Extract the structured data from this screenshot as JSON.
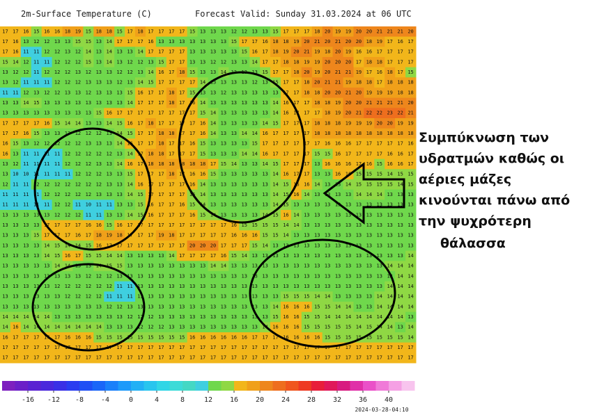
{
  "header": {
    "title": "2m-Surface Temperature (C)",
    "valid": "Forecast Valid:  Sunday 31.03.2024 at 06 UTC"
  },
  "grid": [
    [
      17,
      17,
      16,
      15,
      16,
      16,
      18,
      19,
      15,
      18,
      18,
      15,
      17,
      18,
      17,
      17,
      17,
      17,
      15,
      13,
      13,
      13,
      12,
      12,
      13,
      13,
      15,
      17,
      17,
      17,
      18,
      20,
      19,
      19,
      20,
      20,
      21,
      21,
      21,
      20
    ],
    [
      17,
      16,
      13,
      12,
      12,
      13,
      13,
      15,
      15,
      13,
      14,
      17,
      17,
      17,
      16,
      13,
      13,
      13,
      13,
      13,
      13,
      13,
      15,
      17,
      17,
      16,
      18,
      18,
      19,
      20,
      21,
      20,
      21,
      20,
      20,
      18,
      19,
      17,
      16,
      17
    ],
    [
      17,
      16,
      11,
      11,
      12,
      12,
      13,
      12,
      14,
      13,
      14,
      13,
      13,
      14,
      17,
      17,
      17,
      17,
      13,
      13,
      13,
      13,
      13,
      15,
      16,
      17,
      18,
      19,
      20,
      21,
      19,
      18,
      20,
      19,
      16,
      16,
      17,
      17,
      17,
      17
    ],
    [
      15,
      14,
      12,
      11,
      11,
      12,
      12,
      12,
      15,
      13,
      14,
      13,
      12,
      12,
      13,
      15,
      17,
      17,
      13,
      13,
      12,
      12,
      13,
      13,
      14,
      17,
      17,
      18,
      18,
      19,
      19,
      20,
      20,
      20,
      17,
      18,
      18,
      17,
      17,
      17
    ],
    [
      13,
      12,
      12,
      11,
      12,
      12,
      12,
      13,
      12,
      13,
      13,
      12,
      12,
      13,
      14,
      16,
      17,
      18,
      15,
      13,
      13,
      14,
      13,
      13,
      13,
      15,
      17,
      17,
      18,
      20,
      19,
      20,
      21,
      21,
      19,
      17,
      16,
      18,
      17,
      15
    ],
    [
      13,
      12,
      11,
      11,
      11,
      12,
      12,
      12,
      13,
      13,
      13,
      12,
      13,
      14,
      15,
      17,
      17,
      17,
      17,
      14,
      13,
      13,
      13,
      13,
      12,
      13,
      15,
      17,
      17,
      18,
      20,
      21,
      21,
      19,
      18,
      18,
      17,
      18,
      18,
      18
    ],
    [
      11,
      11,
      12,
      13,
      12,
      12,
      13,
      13,
      12,
      13,
      13,
      13,
      15,
      16,
      17,
      17,
      18,
      17,
      15,
      13,
      13,
      12,
      13,
      13,
      13,
      13,
      13,
      17,
      17,
      18,
      18,
      20,
      20,
      21,
      20,
      19,
      19,
      19,
      18,
      18
    ],
    [
      13,
      13,
      14,
      15,
      13,
      13,
      13,
      13,
      13,
      13,
      13,
      13,
      14,
      17,
      17,
      17,
      18,
      17,
      16,
      14,
      13,
      13,
      13,
      13,
      13,
      13,
      14,
      16,
      17,
      17,
      18,
      18,
      19,
      20,
      20,
      21,
      21,
      21,
      21,
      20
    ],
    [
      13,
      13,
      13,
      13,
      13,
      13,
      13,
      13,
      13,
      15,
      16,
      17,
      17,
      17,
      17,
      17,
      17,
      17,
      17,
      15,
      14,
      13,
      13,
      13,
      13,
      13,
      14,
      16,
      17,
      17,
      17,
      18,
      19,
      20,
      21,
      22,
      22,
      23,
      22,
      21
    ],
    [
      17,
      17,
      17,
      17,
      16,
      15,
      14,
      14,
      13,
      13,
      14,
      15,
      16,
      17,
      18,
      17,
      17,
      17,
      17,
      16,
      14,
      13,
      13,
      13,
      13,
      14,
      15,
      17,
      17,
      17,
      18,
      18,
      18,
      19,
      19,
      19,
      20,
      20,
      19,
      19
    ],
    [
      17,
      17,
      16,
      15,
      13,
      13,
      13,
      12,
      12,
      12,
      13,
      14,
      15,
      17,
      17,
      18,
      18,
      17,
      17,
      16,
      14,
      13,
      13,
      14,
      14,
      16,
      17,
      17,
      17,
      17,
      18,
      18,
      18,
      18,
      18,
      18,
      18,
      18,
      18,
      18
    ],
    [
      16,
      15,
      13,
      12,
      12,
      12,
      12,
      12,
      13,
      13,
      13,
      14,
      16,
      17,
      17,
      18,
      17,
      17,
      16,
      15,
      13,
      13,
      13,
      13,
      15,
      17,
      17,
      17,
      17,
      17,
      17,
      16,
      16,
      16,
      17,
      17,
      17,
      17,
      17,
      16
    ],
    [
      16,
      13,
      11,
      11,
      11,
      11,
      12,
      12,
      12,
      12,
      12,
      13,
      14,
      17,
      18,
      18,
      17,
      17,
      17,
      15,
      13,
      13,
      13,
      14,
      14,
      16,
      17,
      17,
      17,
      17,
      15,
      15,
      16,
      17,
      17,
      17,
      17,
      16,
      16,
      17
    ],
    [
      13,
      12,
      11,
      11,
      11,
      11,
      12,
      12,
      12,
      13,
      13,
      14,
      16,
      17,
      18,
      18,
      18,
      18,
      18,
      18,
      17,
      15,
      14,
      13,
      13,
      14,
      15,
      17,
      17,
      17,
      13,
      16,
      16,
      16,
      17,
      16,
      15,
      16,
      16,
      17
    ],
    [
      13,
      10,
      10,
      11,
      11,
      11,
      11,
      12,
      12,
      12,
      13,
      13,
      15,
      17,
      17,
      17,
      18,
      17,
      16,
      16,
      15,
      13,
      13,
      13,
      13,
      13,
      14,
      16,
      17,
      17,
      13,
      13,
      16,
      16,
      15,
      15,
      15,
      14,
      15,
      15
    ],
    [
      12,
      11,
      11,
      12,
      12,
      12,
      12,
      12,
      12,
      12,
      13,
      13,
      14,
      16,
      17,
      17,
      17,
      17,
      16,
      14,
      13,
      13,
      13,
      13,
      13,
      13,
      14,
      15,
      16,
      16,
      14,
      13,
      13,
      14,
      15,
      15,
      15,
      15,
      14,
      15
    ],
    [
      11,
      11,
      11,
      11,
      12,
      12,
      12,
      12,
      12,
      13,
      13,
      13,
      14,
      15,
      17,
      17,
      17,
      17,
      15,
      14,
      13,
      13,
      13,
      13,
      13,
      13,
      14,
      15,
      16,
      14,
      13,
      13,
      13,
      13,
      14,
      14,
      14,
      13,
      13,
      13
    ],
    [
      11,
      11,
      11,
      11,
      11,
      12,
      12,
      11,
      10,
      11,
      11,
      13,
      13,
      15,
      16,
      17,
      17,
      16,
      15,
      14,
      13,
      13,
      13,
      13,
      13,
      13,
      14,
      15,
      13,
      13,
      13,
      13,
      13,
      13,
      13,
      13,
      13,
      13,
      13,
      13
    ],
    [
      13,
      13,
      13,
      13,
      13,
      12,
      12,
      12,
      11,
      11,
      13,
      13,
      14,
      15,
      16,
      17,
      17,
      17,
      16,
      15,
      14,
      13,
      13,
      13,
      13,
      14,
      15,
      16,
      14,
      13,
      13,
      13,
      13,
      13,
      13,
      13,
      13,
      13,
      13,
      13
    ],
    [
      13,
      13,
      13,
      13,
      17,
      17,
      17,
      17,
      16,
      16,
      15,
      16,
      17,
      17,
      17,
      17,
      17,
      17,
      17,
      17,
      17,
      17,
      16,
      15,
      15,
      15,
      15,
      14,
      14,
      13,
      13,
      13,
      13,
      13,
      13,
      13,
      13,
      13,
      13,
      13
    ],
    [
      13,
      13,
      13,
      15,
      17,
      17,
      17,
      16,
      17,
      18,
      19,
      18,
      17,
      17,
      17,
      19,
      18,
      17,
      17,
      17,
      17,
      17,
      16,
      16,
      16,
      15,
      15,
      14,
      13,
      13,
      13,
      13,
      13,
      13,
      13,
      13,
      13,
      13,
      13,
      13
    ],
    [
      13,
      13,
      13,
      13,
      14,
      15,
      14,
      14,
      15,
      16,
      17,
      17,
      17,
      17,
      17,
      17,
      17,
      17,
      20,
      20,
      20,
      17,
      17,
      17,
      15,
      14,
      13,
      13,
      13,
      13,
      13,
      13,
      13,
      13,
      13,
      13,
      13,
      13,
      13,
      13
    ],
    [
      13,
      13,
      13,
      13,
      14,
      15,
      16,
      17,
      15,
      15,
      14,
      14,
      13,
      13,
      13,
      13,
      14,
      17,
      17,
      17,
      17,
      16,
      15,
      14,
      13,
      13,
      13,
      13,
      13,
      13,
      13,
      13,
      13,
      13,
      13,
      13,
      13,
      13,
      13,
      14
    ],
    [
      13,
      13,
      13,
      13,
      13,
      14,
      14,
      13,
      13,
      14,
      15,
      15,
      13,
      13,
      13,
      13,
      13,
      13,
      13,
      13,
      14,
      14,
      13,
      13,
      13,
      13,
      13,
      13,
      13,
      13,
      13,
      13,
      13,
      13,
      13,
      13,
      13,
      14,
      14,
      14
    ],
    [
      13,
      13,
      13,
      13,
      13,
      13,
      13,
      13,
      12,
      12,
      12,
      13,
      13,
      13,
      13,
      13,
      13,
      13,
      13,
      13,
      13,
      13,
      13,
      13,
      13,
      13,
      13,
      13,
      13,
      13,
      13,
      13,
      13,
      13,
      13,
      13,
      13,
      13,
      14,
      14
    ],
    [
      13,
      13,
      13,
      13,
      13,
      12,
      12,
      12,
      12,
      12,
      12,
      11,
      11,
      13,
      13,
      13,
      13,
      13,
      13,
      13,
      13,
      13,
      13,
      13,
      13,
      13,
      13,
      13,
      13,
      13,
      13,
      13,
      13,
      13,
      13,
      13,
      13,
      14,
      14,
      14
    ],
    [
      13,
      13,
      13,
      13,
      13,
      13,
      12,
      12,
      12,
      12,
      11,
      11,
      11,
      13,
      13,
      13,
      13,
      13,
      13,
      13,
      13,
      13,
      13,
      13,
      13,
      13,
      13,
      15,
      15,
      15,
      14,
      14,
      13,
      13,
      13,
      13,
      14,
      14,
      14,
      14
    ],
    [
      13,
      13,
      13,
      13,
      13,
      13,
      13,
      13,
      13,
      13,
      12,
      12,
      13,
      13,
      13,
      13,
      13,
      13,
      13,
      13,
      13,
      13,
      13,
      13,
      13,
      13,
      14,
      16,
      16,
      16,
      15,
      15,
      14,
      14,
      13,
      13,
      14,
      14,
      14,
      14
    ],
    [
      14,
      14,
      14,
      14,
      14,
      13,
      13,
      13,
      13,
      13,
      13,
      13,
      12,
      12,
      12,
      13,
      13,
      13,
      13,
      13,
      13,
      13,
      13,
      13,
      13,
      13,
      15,
      16,
      16,
      15,
      15,
      14,
      14,
      14,
      14,
      14,
      14,
      14,
      14,
      13
    ],
    [
      14,
      16,
      14,
      14,
      14,
      14,
      14,
      14,
      14,
      14,
      13,
      13,
      13,
      12,
      12,
      12,
      13,
      13,
      13,
      13,
      13,
      13,
      13,
      13,
      13,
      14,
      16,
      16,
      16,
      15,
      15,
      15,
      15,
      15,
      14,
      15,
      14,
      14,
      13,
      14
    ],
    [
      16,
      17,
      17,
      17,
      17,
      17,
      16,
      16,
      16,
      15,
      15,
      15,
      15,
      15,
      15,
      15,
      15,
      15,
      16,
      16,
      16,
      16,
      16,
      16,
      17,
      17,
      17,
      16,
      16,
      16,
      16,
      15,
      15,
      15,
      15,
      15,
      15,
      15,
      15,
      14
    ],
    [
      17,
      17,
      17,
      17,
      17,
      17,
      17,
      17,
      17,
      17,
      17,
      17,
      17,
      17,
      17,
      17,
      17,
      17,
      17,
      17,
      17,
      17,
      17,
      17,
      17,
      17,
      17,
      17,
      17,
      17,
      17,
      17,
      17,
      17,
      17,
      17,
      17,
      17,
      17,
      17
    ],
    [
      17,
      17,
      17,
      17,
      17,
      17,
      17,
      17,
      17,
      17,
      17,
      17,
      17,
      17,
      17,
      17,
      17,
      17,
      17,
      17,
      17,
      17,
      17,
      17,
      17,
      17,
      17,
      17,
      17,
      17,
      17,
      17,
      17,
      17,
      17,
      17,
      17,
      17,
      17,
      17
    ]
  ],
  "colorbar": {
    "lim": [
      -20,
      44
    ],
    "colors": [
      "#7d1fbf",
      "#6b1fc8",
      "#5a22d2",
      "#4a28dc",
      "#3a30e6",
      "#2a3df0",
      "#1f4ff5",
      "#1a66f8",
      "#1a80fa",
      "#1d9afa",
      "#22b0f5",
      "#28c5ee",
      "#30d6e6",
      "#3ddbd8",
      "#44d8c4",
      "#3fcfe0",
      "#6fd84c",
      "#8fd844",
      "#f2b61a",
      "#f0a01a",
      "#ee861c",
      "#ee6e1e",
      "#f0561e",
      "#ee3a22",
      "#e81e3a",
      "#e0185a",
      "#d81a80",
      "#e030a8",
      "#ea50c8",
      "#f07ad8",
      "#f5a0e4",
      "#f8c4ee"
    ],
    "ticks": [
      -16,
      -12,
      -8,
      -4,
      0,
      4,
      8,
      12,
      16,
      20,
      24,
      28,
      32,
      36,
      40
    ]
  },
  "timestamp": "2024-03-28-04:10",
  "annotation": [
    "Συμπύκνωση των",
    "υδρατμών καθώς οι",
    "αέριες μάζες",
    "κινούνται πάνω από",
    "την ψυχρότερη",
    "θάλασσα"
  ]
}
